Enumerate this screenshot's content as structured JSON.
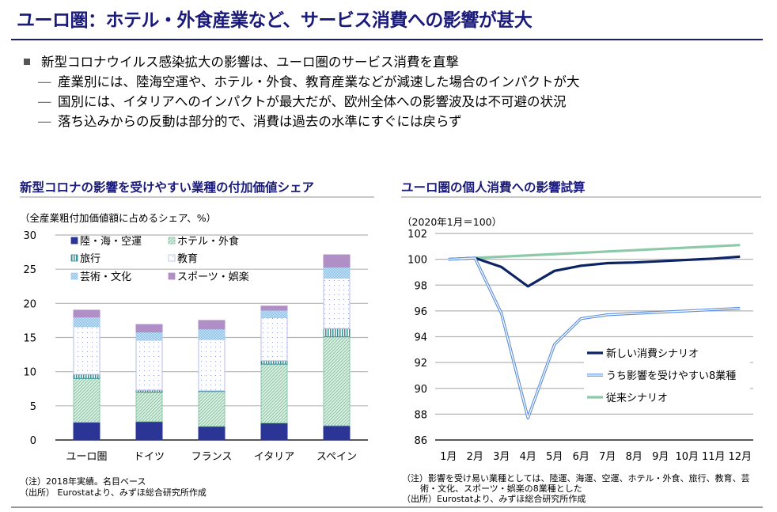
{
  "page": {
    "title": "ユーロ圏：ホテル・外食産業など、サービス消費への影響が甚大",
    "bullets": {
      "main": "新型コロナウイルス感染拡大の影響は、ユーロ圏のサービス消費を直撃",
      "subs": [
        "産業別には、陸海空運や、ホテル・外食、教育産業などが減速した場合のインパクトが大",
        "国別には、イタリアへのインパクトが最大だが、欧州全体への影響波及は不可避の状況",
        "落ち込みからの反動は部分的で、消費は過去の水準にすぐには戻らず"
      ],
      "dash": "―"
    },
    "left_panel": {
      "title": "新型コロナの影響を受けやすい業種の付加価値シェア",
      "unit": "（全産業粗付加価値額に占めるシェア、%）",
      "notes": [
        "（注）2018年実績。名目ベース",
        "（出所） Eurostatより、みずほ総合研究所作成"
      ]
    },
    "right_panel": {
      "title": "ユーロ圏の個人消費への影響試算",
      "unit": "（2020年1月＝100）",
      "notes": [
        "（注）影響を受け易い業種としては、陸運、海運、空運、ホテル・外食、旅行、教育、芸",
        "術・文化、スポーツ・娯楽の8業種とした",
        "（出所）Eurostatより、みずほ総合研究所作成"
      ]
    }
  },
  "chart_data": [
    {
      "type": "bar",
      "stacked": true,
      "title": "新型コロナの影響を受けやすい業種の付加価値シェア",
      "ylabel": "（全産業粗付加価値額に占めるシェア、%）",
      "categories": [
        "ユーロ圏",
        "ドイツ",
        "フランス",
        "イタリア",
        "スペイン"
      ],
      "ylim": [
        0,
        30
      ],
      "yticks": [
        0,
        5,
        10,
        15,
        20,
        25,
        30
      ],
      "grid": true,
      "legend_position": "top-left",
      "series": [
        {
          "name": "陸・海・空運",
          "color": "#2b3595",
          "pattern": "solid",
          "values": [
            2.6,
            2.7,
            2.0,
            2.5,
            2.1
          ]
        },
        {
          "name": "ホテル・外食",
          "color": "#8cc9a8",
          "pattern": "diagonal",
          "values": [
            6.4,
            4.3,
            5.1,
            8.6,
            13.0
          ]
        },
        {
          "name": "旅行",
          "color": "#3a8f96",
          "pattern": "vertical",
          "values": [
            0.6,
            0.3,
            0.1,
            0.5,
            1.2
          ]
        },
        {
          "name": "教育",
          "color": "#b7bde6",
          "pattern": "dots",
          "values": [
            7.0,
            7.3,
            7.5,
            6.3,
            7.4
          ]
        },
        {
          "name": "芸術・文化",
          "color": "#a9cbe6",
          "pattern": "checker",
          "values": [
            1.4,
            1.2,
            1.55,
            1.1,
            1.6
          ]
        },
        {
          "name": "スポーツ・娯楽",
          "color": "#b08ec6",
          "pattern": "solid",
          "values": [
            1.0,
            1.1,
            1.25,
            0.6,
            1.8
          ]
        }
      ]
    },
    {
      "type": "line",
      "title": "ユーロ圏の個人消費への影響試算",
      "ylabel": "（2020年1月＝100）",
      "x": [
        "1月",
        "2月",
        "3月",
        "4月",
        "5月",
        "6月",
        "7月",
        "8月",
        "9月",
        "10月",
        "11月",
        "12月"
      ],
      "ylim": [
        86,
        102
      ],
      "yticks": [
        86,
        88,
        90,
        92,
        94,
        96,
        98,
        100,
        102
      ],
      "grid": true,
      "legend_position": "bottom-right",
      "series": [
        {
          "name": "新しい消費シナリオ",
          "color": "#0d2363",
          "style": "solid",
          "values": [
            100,
            100.1,
            99.4,
            97.9,
            99.1,
            99.5,
            99.7,
            99.75,
            99.85,
            99.95,
            100.05,
            100.2
          ]
        },
        {
          "name": "うち影響を受けやすい8業種",
          "color": "#5a8ee0",
          "style": "double",
          "values": [
            100,
            100.1,
            95.8,
            87.7,
            93.4,
            95.4,
            95.7,
            95.8,
            95.9,
            96.0,
            96.1,
            96.2
          ]
        },
        {
          "name": "従来シナリオ",
          "color": "#8cc9a8",
          "style": "solid",
          "values": [
            100,
            100.1,
            100.2,
            100.3,
            100.4,
            100.5,
            100.6,
            100.7,
            100.8,
            100.9,
            101.0,
            101.1
          ]
        }
      ]
    }
  ]
}
